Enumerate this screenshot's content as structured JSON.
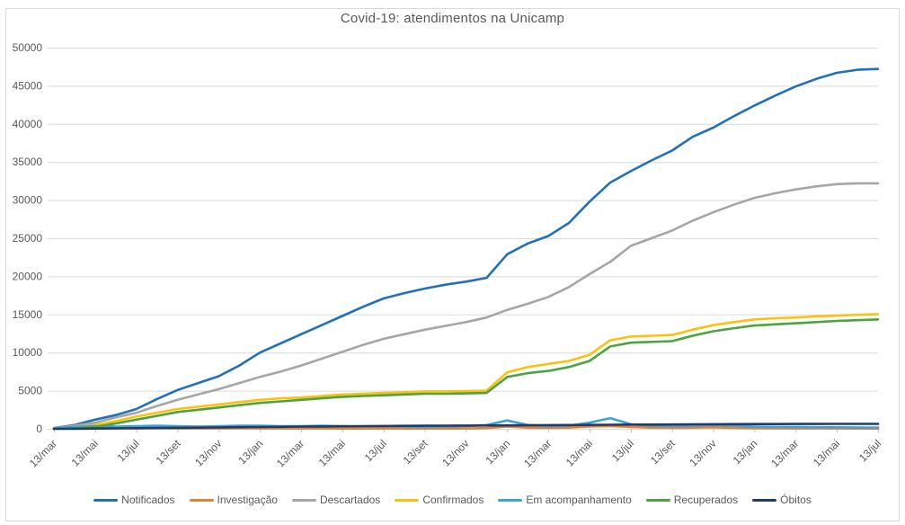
{
  "title": "Covid-19: atendimentos  na Unicamp",
  "colors": {
    "text": "#595959",
    "grid": "#d9d9d9",
    "tick": "#bfbfbf",
    "frame": "#d9d9d9",
    "background": "#ffffff"
  },
  "chart_data": {
    "type": "line",
    "title": "Covid-19: atendimentos  na Unicamp",
    "xlabel": "",
    "ylabel": "",
    "x_unit": "monthly points, 13th of each month, mar/2020 - jul/2023",
    "tick_labels": [
      "13/mar",
      "13/mai",
      "13/jul",
      "13/set",
      "13/nov",
      "13/jan",
      "13/mar",
      "13/mai",
      "13/jul",
      "13/set",
      "13/nov",
      "13/jan",
      "13/mar",
      "13/mai",
      "13/jul",
      "13/set",
      "13/nov",
      "13/jan",
      "13/mar",
      "13/mai",
      "13/jul"
    ],
    "tick_every_n_points": 2,
    "ylim": [
      0,
      50000
    ],
    "ytick_step": 5000,
    "y_tick_labels": [
      "0",
      "5000",
      "10000",
      "15000",
      "20000",
      "25000",
      "30000",
      "35000",
      "40000",
      "45000",
      "50000"
    ],
    "grid": "horizontal",
    "legend_position": "bottom",
    "series": [
      {
        "name": "Notificados",
        "color": "#2271b8",
        "values": [
          100,
          500,
          1200,
          1800,
          2600,
          3900,
          5100,
          6000,
          6900,
          8300,
          10000,
          11200,
          12400,
          13600,
          14800,
          16000,
          17100,
          17800,
          18400,
          18900,
          19300,
          19800,
          22900,
          24300,
          25300,
          27000,
          29800,
          32300,
          33800,
          35200,
          36500,
          38300,
          39500,
          41000,
          42400,
          43700,
          44900,
          45900,
          46700,
          47100,
          47200
        ]
      },
      {
        "name": "Investigação",
        "color": "#ed7d31",
        "values": [
          60,
          80,
          100,
          80,
          60,
          80,
          60,
          50,
          60,
          80,
          60,
          50,
          50,
          50,
          40,
          40,
          50,
          40,
          40,
          40,
          50,
          100,
          300,
          150,
          120,
          150,
          300,
          350,
          250,
          150,
          120,
          150,
          200,
          120,
          80,
          60,
          50,
          60,
          50,
          40,
          30
        ]
      },
      {
        "name": "Descartados",
        "color": "#a6a6a6",
        "values": [
          50,
          400,
          800,
          1500,
          2100,
          3000,
          3800,
          4500,
          5200,
          6000,
          6800,
          7500,
          8300,
          9200,
          10100,
          11000,
          11800,
          12400,
          13000,
          13500,
          14000,
          14600,
          15600,
          16400,
          17300,
          18600,
          20300,
          21900,
          24000,
          25000,
          26000,
          27300,
          28400,
          29400,
          30300,
          30900,
          31400,
          31800,
          32100,
          32200,
          32200
        ]
      },
      {
        "name": "Confirmados",
        "color": "#fdc00f",
        "values": [
          30,
          200,
          500,
          1000,
          1600,
          2100,
          2600,
          2900,
          3200,
          3500,
          3800,
          4000,
          4100,
          4300,
          4500,
          4600,
          4700,
          4800,
          4900,
          4900,
          4950,
          5000,
          7400,
          8100,
          8500,
          8900,
          9700,
          11600,
          12100,
          12200,
          12300,
          13000,
          13600,
          14000,
          14350,
          14500,
          14600,
          14750,
          14850,
          14950,
          15050
        ]
      },
      {
        "name": "Em acompanhamento",
        "color": "#3ea2da",
        "values": [
          30,
          250,
          350,
          300,
          350,
          400,
          350,
          300,
          350,
          400,
          400,
          350,
          350,
          400,
          350,
          300,
          350,
          300,
          250,
          300,
          350,
          500,
          1100,
          500,
          350,
          400,
          800,
          1400,
          600,
          400,
          350,
          400,
          500,
          400,
          300,
          250,
          250,
          200,
          200,
          180,
          150
        ]
      },
      {
        "name": "Recuperados",
        "color": "#4aa440",
        "values": [
          0,
          50,
          250,
          700,
          1200,
          1700,
          2200,
          2500,
          2800,
          3100,
          3400,
          3600,
          3800,
          4000,
          4200,
          4300,
          4400,
          4500,
          4600,
          4600,
          4650,
          4700,
          6800,
          7300,
          7600,
          8100,
          8900,
          10800,
          11300,
          11400,
          11500,
          12200,
          12800,
          13200,
          13550,
          13700,
          13850,
          14000,
          14150,
          14250,
          14350
        ]
      },
      {
        "name": "Óbitos",
        "color": "#1f3b66",
        "values": [
          0,
          15,
          30,
          55,
          80,
          105,
          130,
          155,
          180,
          210,
          240,
          265,
          290,
          310,
          330,
          350,
          370,
          385,
          400,
          410,
          420,
          435,
          450,
          465,
          480,
          495,
          510,
          530,
          550,
          560,
          570,
          585,
          600,
          610,
          620,
          628,
          635,
          640,
          645,
          648,
          650
        ]
      }
    ]
  }
}
